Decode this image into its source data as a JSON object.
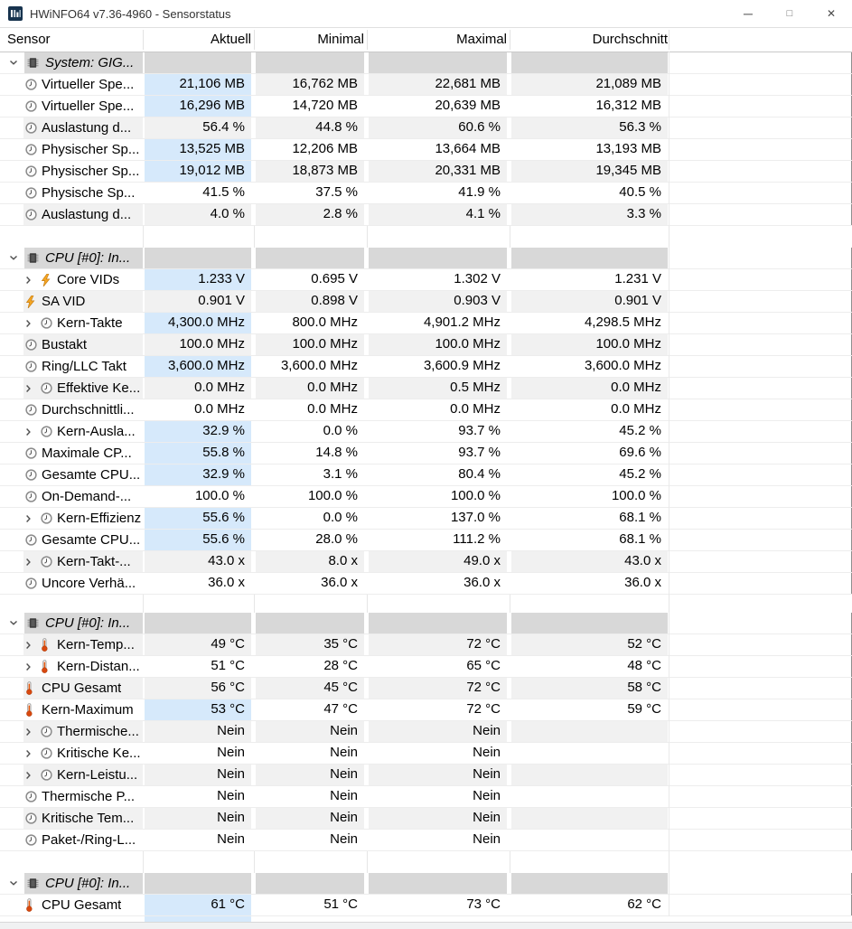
{
  "window": {
    "title": "HWiNFO64 v7.36-4960 - Sensorstatus",
    "controls": {
      "minimize": "─",
      "maximize": "□",
      "close": "✕"
    }
  },
  "colors": {
    "current_highlight_blue": "#d6e9fb",
    "row_stripe_gray": "#f1f1f1",
    "group_header_gray": "#d8d8d8"
  },
  "columns": [
    "Sensor",
    "Aktuell",
    "Minimal",
    "Maximal",
    "Durchschnitt"
  ],
  "groups": [
    {
      "label": "System: GIG...",
      "rows": [
        {
          "name": "Virtueller Spe...",
          "icon": "gauge",
          "expand": false,
          "style": "blue-gray",
          "values": [
            "21,106 MB",
            "16,762 MB",
            "22,681 MB",
            "21,089 MB"
          ]
        },
        {
          "name": "Virtueller Spe...",
          "icon": "gauge",
          "expand": false,
          "style": "blue",
          "values": [
            "16,296 MB",
            "14,720 MB",
            "20,639 MB",
            "16,312 MB"
          ]
        },
        {
          "name": "Auslastung d...",
          "icon": "gauge",
          "expand": false,
          "style": "gray",
          "values": [
            "56.4 %",
            "44.8 %",
            "60.6 %",
            "56.3 %"
          ]
        },
        {
          "name": "Physischer Sp...",
          "icon": "gauge",
          "expand": false,
          "style": "blue",
          "values": [
            "13,525 MB",
            "12,206 MB",
            "13,664 MB",
            "13,193 MB"
          ]
        },
        {
          "name": "Physischer Sp...",
          "icon": "gauge",
          "expand": false,
          "style": "blue-gray",
          "values": [
            "19,012 MB",
            "18,873 MB",
            "20,331 MB",
            "19,345 MB"
          ]
        },
        {
          "name": "Physische Sp...",
          "icon": "gauge",
          "expand": false,
          "style": "white",
          "values": [
            "41.5 %",
            "37.5 %",
            "41.9 %",
            "40.5 %"
          ]
        },
        {
          "name": "Auslastung d...",
          "icon": "gauge",
          "expand": false,
          "style": "gray",
          "values": [
            "4.0 %",
            "2.8 %",
            "4.1 %",
            "3.3 %"
          ]
        }
      ]
    },
    {
      "label": "CPU [#0]: In...",
      "rows": [
        {
          "name": "Core VIDs",
          "icon": "voltage",
          "expand": true,
          "style": "blue",
          "values": [
            "1.233 V",
            "0.695 V",
            "1.302 V",
            "1.231 V"
          ]
        },
        {
          "name": "SA VID",
          "icon": "voltage",
          "expand": false,
          "style": "gray",
          "values": [
            "0.901 V",
            "0.898 V",
            "0.903 V",
            "0.901 V"
          ]
        },
        {
          "name": "Kern-Takte",
          "icon": "gauge",
          "expand": true,
          "style": "blue",
          "values": [
            "4,300.0 MHz",
            "800.0 MHz",
            "4,901.2 MHz",
            "4,298.5 MHz"
          ]
        },
        {
          "name": "Bustakt",
          "icon": "gauge",
          "expand": false,
          "style": "gray",
          "values": [
            "100.0 MHz",
            "100.0 MHz",
            "100.0 MHz",
            "100.0 MHz"
          ]
        },
        {
          "name": "Ring/LLC Takt",
          "icon": "gauge",
          "expand": false,
          "style": "blue",
          "values": [
            "3,600.0 MHz",
            "3,600.0 MHz",
            "3,600.9 MHz",
            "3,600.0 MHz"
          ]
        },
        {
          "name": "Effektive Ke...",
          "icon": "gauge",
          "expand": true,
          "style": "gray",
          "values": [
            "0.0 MHz",
            "0.0 MHz",
            "0.5 MHz",
            "0.0 MHz"
          ]
        },
        {
          "name": "Durchschnittli...",
          "icon": "gauge",
          "expand": false,
          "style": "white",
          "values": [
            "0.0 MHz",
            "0.0 MHz",
            "0.0 MHz",
            "0.0 MHz"
          ]
        },
        {
          "name": "Kern-Ausla...",
          "icon": "gauge",
          "expand": true,
          "style": "blue",
          "values": [
            "32.9 %",
            "0.0 %",
            "93.7 %",
            "45.2 %"
          ]
        },
        {
          "name": "Maximale CP...",
          "icon": "gauge",
          "expand": false,
          "style": "blue",
          "values": [
            "55.8 %",
            "14.8 %",
            "93.7 %",
            "69.6 %"
          ]
        },
        {
          "name": "Gesamte CPU...",
          "icon": "gauge",
          "expand": false,
          "style": "blue",
          "values": [
            "32.9 %",
            "3.1 %",
            "80.4 %",
            "45.2 %"
          ]
        },
        {
          "name": "On-Demand-...",
          "icon": "gauge",
          "expand": false,
          "style": "white",
          "values": [
            "100.0 %",
            "100.0 %",
            "100.0 %",
            "100.0 %"
          ]
        },
        {
          "name": "Kern-Effizienz",
          "icon": "gauge",
          "expand": true,
          "style": "blue",
          "values": [
            "55.6 %",
            "0.0 %",
            "137.0 %",
            "68.1 %"
          ]
        },
        {
          "name": "Gesamte CPU...",
          "icon": "gauge",
          "expand": false,
          "style": "blue",
          "values": [
            "55.6 %",
            "28.0 %",
            "111.2 %",
            "68.1 %"
          ]
        },
        {
          "name": "Kern-Takt-...",
          "icon": "gauge",
          "expand": true,
          "style": "gray",
          "values": [
            "43.0 x",
            "8.0 x",
            "49.0 x",
            "43.0 x"
          ]
        },
        {
          "name": "Uncore Verhä...",
          "icon": "gauge",
          "expand": false,
          "style": "white",
          "values": [
            "36.0 x",
            "36.0 x",
            "36.0 x",
            "36.0 x"
          ]
        }
      ]
    },
    {
      "label": "CPU [#0]: In...",
      "rows": [
        {
          "name": "Kern-Temp...",
          "icon": "temperature",
          "expand": true,
          "style": "gray",
          "values": [
            "49 °C",
            "35 °C",
            "72 °C",
            "52 °C"
          ]
        },
        {
          "name": "Kern-Distan...",
          "icon": "temperature",
          "expand": true,
          "style": "white",
          "values": [
            "51 °C",
            "28 °C",
            "65 °C",
            "48 °C"
          ]
        },
        {
          "name": "CPU Gesamt",
          "icon": "temperature",
          "expand": false,
          "style": "gray",
          "values": [
            "56 °C",
            "45 °C",
            "72 °C",
            "58 °C"
          ]
        },
        {
          "name": "Kern-Maximum",
          "icon": "temperature",
          "expand": false,
          "style": "blue",
          "values": [
            "53 °C",
            "47 °C",
            "72 °C",
            "59 °C"
          ]
        },
        {
          "name": "Thermische...",
          "icon": "gauge",
          "expand": true,
          "style": "gray",
          "values": [
            "Nein",
            "Nein",
            "Nein",
            ""
          ]
        },
        {
          "name": "Kritische Ke...",
          "icon": "gauge",
          "expand": true,
          "style": "white",
          "values": [
            "Nein",
            "Nein",
            "Nein",
            ""
          ]
        },
        {
          "name": "Kern-Leistu...",
          "icon": "gauge",
          "expand": true,
          "style": "gray",
          "values": [
            "Nein",
            "Nein",
            "Nein",
            ""
          ]
        },
        {
          "name": "Thermische P...",
          "icon": "gauge",
          "expand": false,
          "style": "white",
          "values": [
            "Nein",
            "Nein",
            "Nein",
            ""
          ]
        },
        {
          "name": "Kritische Tem...",
          "icon": "gauge",
          "expand": false,
          "style": "gray",
          "values": [
            "Nein",
            "Nein",
            "Nein",
            ""
          ]
        },
        {
          "name": "Paket-/Ring-L...",
          "icon": "gauge",
          "expand": false,
          "style": "white",
          "values": [
            "Nein",
            "Nein",
            "Nein",
            ""
          ]
        }
      ]
    },
    {
      "label": "CPU [#0]: In...",
      "rows": [
        {
          "name": "CPU Gesamt",
          "icon": "temperature",
          "expand": false,
          "style": "blue",
          "values": [
            "61 °C",
            "51 °C",
            "73 °C",
            "62 °C"
          ]
        }
      ]
    }
  ]
}
